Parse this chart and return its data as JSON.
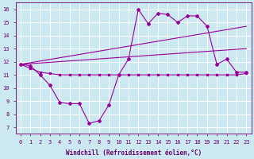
{
  "background_color": "#cce8f0",
  "grid_color": "#ffffff",
  "line_color": "#990099",
  "x_ticks": [
    0,
    1,
    2,
    3,
    4,
    5,
    6,
    7,
    8,
    9,
    10,
    11,
    12,
    13,
    14,
    15,
    16,
    17,
    18,
    19,
    20,
    21,
    22,
    23
  ],
  "y_ticks": [
    7,
    8,
    9,
    10,
    11,
    12,
    13,
    14,
    15,
    16
  ],
  "xlabel": "Windchill (Refroidissement éolien,°C)",
  "xlim": [
    -0.5,
    23.5
  ],
  "ylim": [
    6.5,
    16.5
  ],
  "series_main": {
    "x": [
      0,
      1,
      2,
      3,
      4,
      5,
      6,
      7,
      8,
      9,
      10,
      11,
      12,
      13,
      14,
      15,
      16,
      17,
      18,
      19,
      20,
      21,
      22,
      23
    ],
    "y": [
      11.8,
      11.7,
      11.0,
      10.2,
      8.9,
      8.8,
      8.8,
      7.3,
      7.5,
      8.7,
      11.0,
      12.2,
      16.0,
      14.9,
      15.7,
      15.6,
      15.0,
      15.5,
      15.5,
      14.7,
      11.8,
      12.2,
      11.2,
      11.2
    ]
  },
  "series_flat": {
    "x": [
      0,
      1,
      2,
      3,
      4,
      5,
      6,
      7,
      8,
      9,
      10,
      11,
      12,
      13,
      14,
      15,
      16,
      17,
      18,
      19,
      20,
      21,
      22,
      23
    ],
    "y": [
      11.8,
      11.5,
      11.2,
      11.1,
      11.0,
      11.0,
      11.0,
      11.0,
      11.0,
      11.0,
      11.0,
      11.0,
      11.0,
      11.0,
      11.0,
      11.0,
      11.0,
      11.0,
      11.0,
      11.0,
      11.0,
      11.0,
      11.0,
      11.1
    ]
  },
  "line_low": {
    "x": [
      0,
      23
    ],
    "y": [
      11.8,
      13.0
    ]
  },
  "line_high": {
    "x": [
      0,
      23
    ],
    "y": [
      11.8,
      14.7
    ]
  },
  "tick_fontsize": 5,
  "xlabel_fontsize": 5.5,
  "tick_color": "#660066",
  "spine_color": "#660066"
}
